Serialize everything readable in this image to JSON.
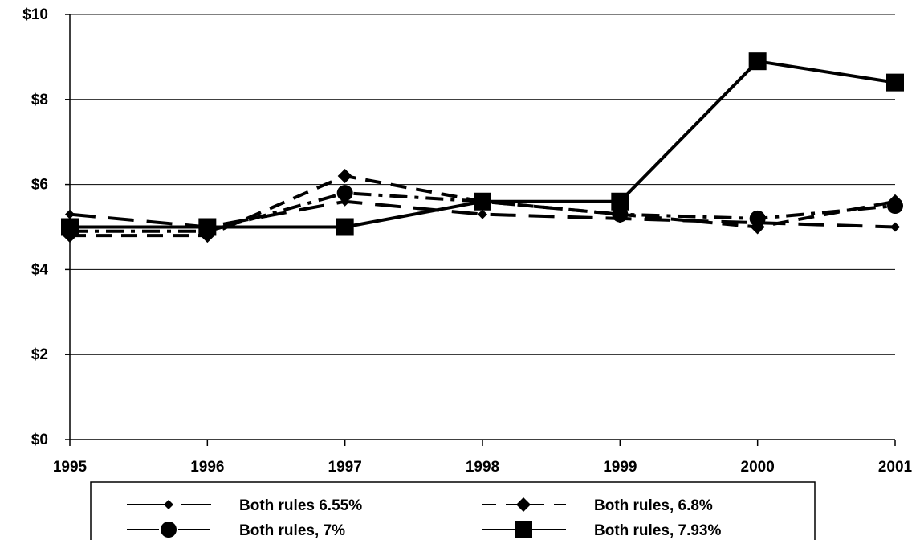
{
  "chart_data": {
    "type": "line",
    "title": "",
    "xlabel": "",
    "ylabel": "",
    "x": [
      "1995",
      "1996",
      "1997",
      "1998",
      "1999",
      "2000",
      "2001"
    ],
    "ylim": [
      0,
      10
    ],
    "y_ticks": [
      0,
      2,
      4,
      6,
      8,
      10
    ],
    "y_tick_labels": [
      "$0",
      "$2",
      "$4",
      "$6",
      "$8",
      "$10"
    ],
    "grid": "horizontal",
    "legend_position": "bottom",
    "series": [
      {
        "name": "Both rules 6.55%",
        "values": [
          5.3,
          5.0,
          5.6,
          5.3,
          5.2,
          5.1,
          5.0
        ],
        "marker": "diamond-small",
        "line_style": "long-dash",
        "color": "#000000"
      },
      {
        "name": "Both rules, 6.8%",
        "values": [
          4.8,
          4.8,
          6.2,
          5.6,
          5.3,
          5.0,
          5.6
        ],
        "marker": "diamond",
        "line_style": "dash",
        "color": "#000000"
      },
      {
        "name": "Both rules, 7%",
        "values": [
          4.9,
          4.9,
          5.8,
          5.6,
          5.3,
          5.2,
          5.5
        ],
        "marker": "circle",
        "line_style": "dash-dot",
        "color": "#000000"
      },
      {
        "name": "Both rules, 7.93%",
        "values": [
          5.0,
          5.0,
          5.0,
          5.6,
          5.6,
          8.9,
          8.4
        ],
        "marker": "square",
        "line_style": "solid",
        "color": "#000000"
      }
    ]
  }
}
